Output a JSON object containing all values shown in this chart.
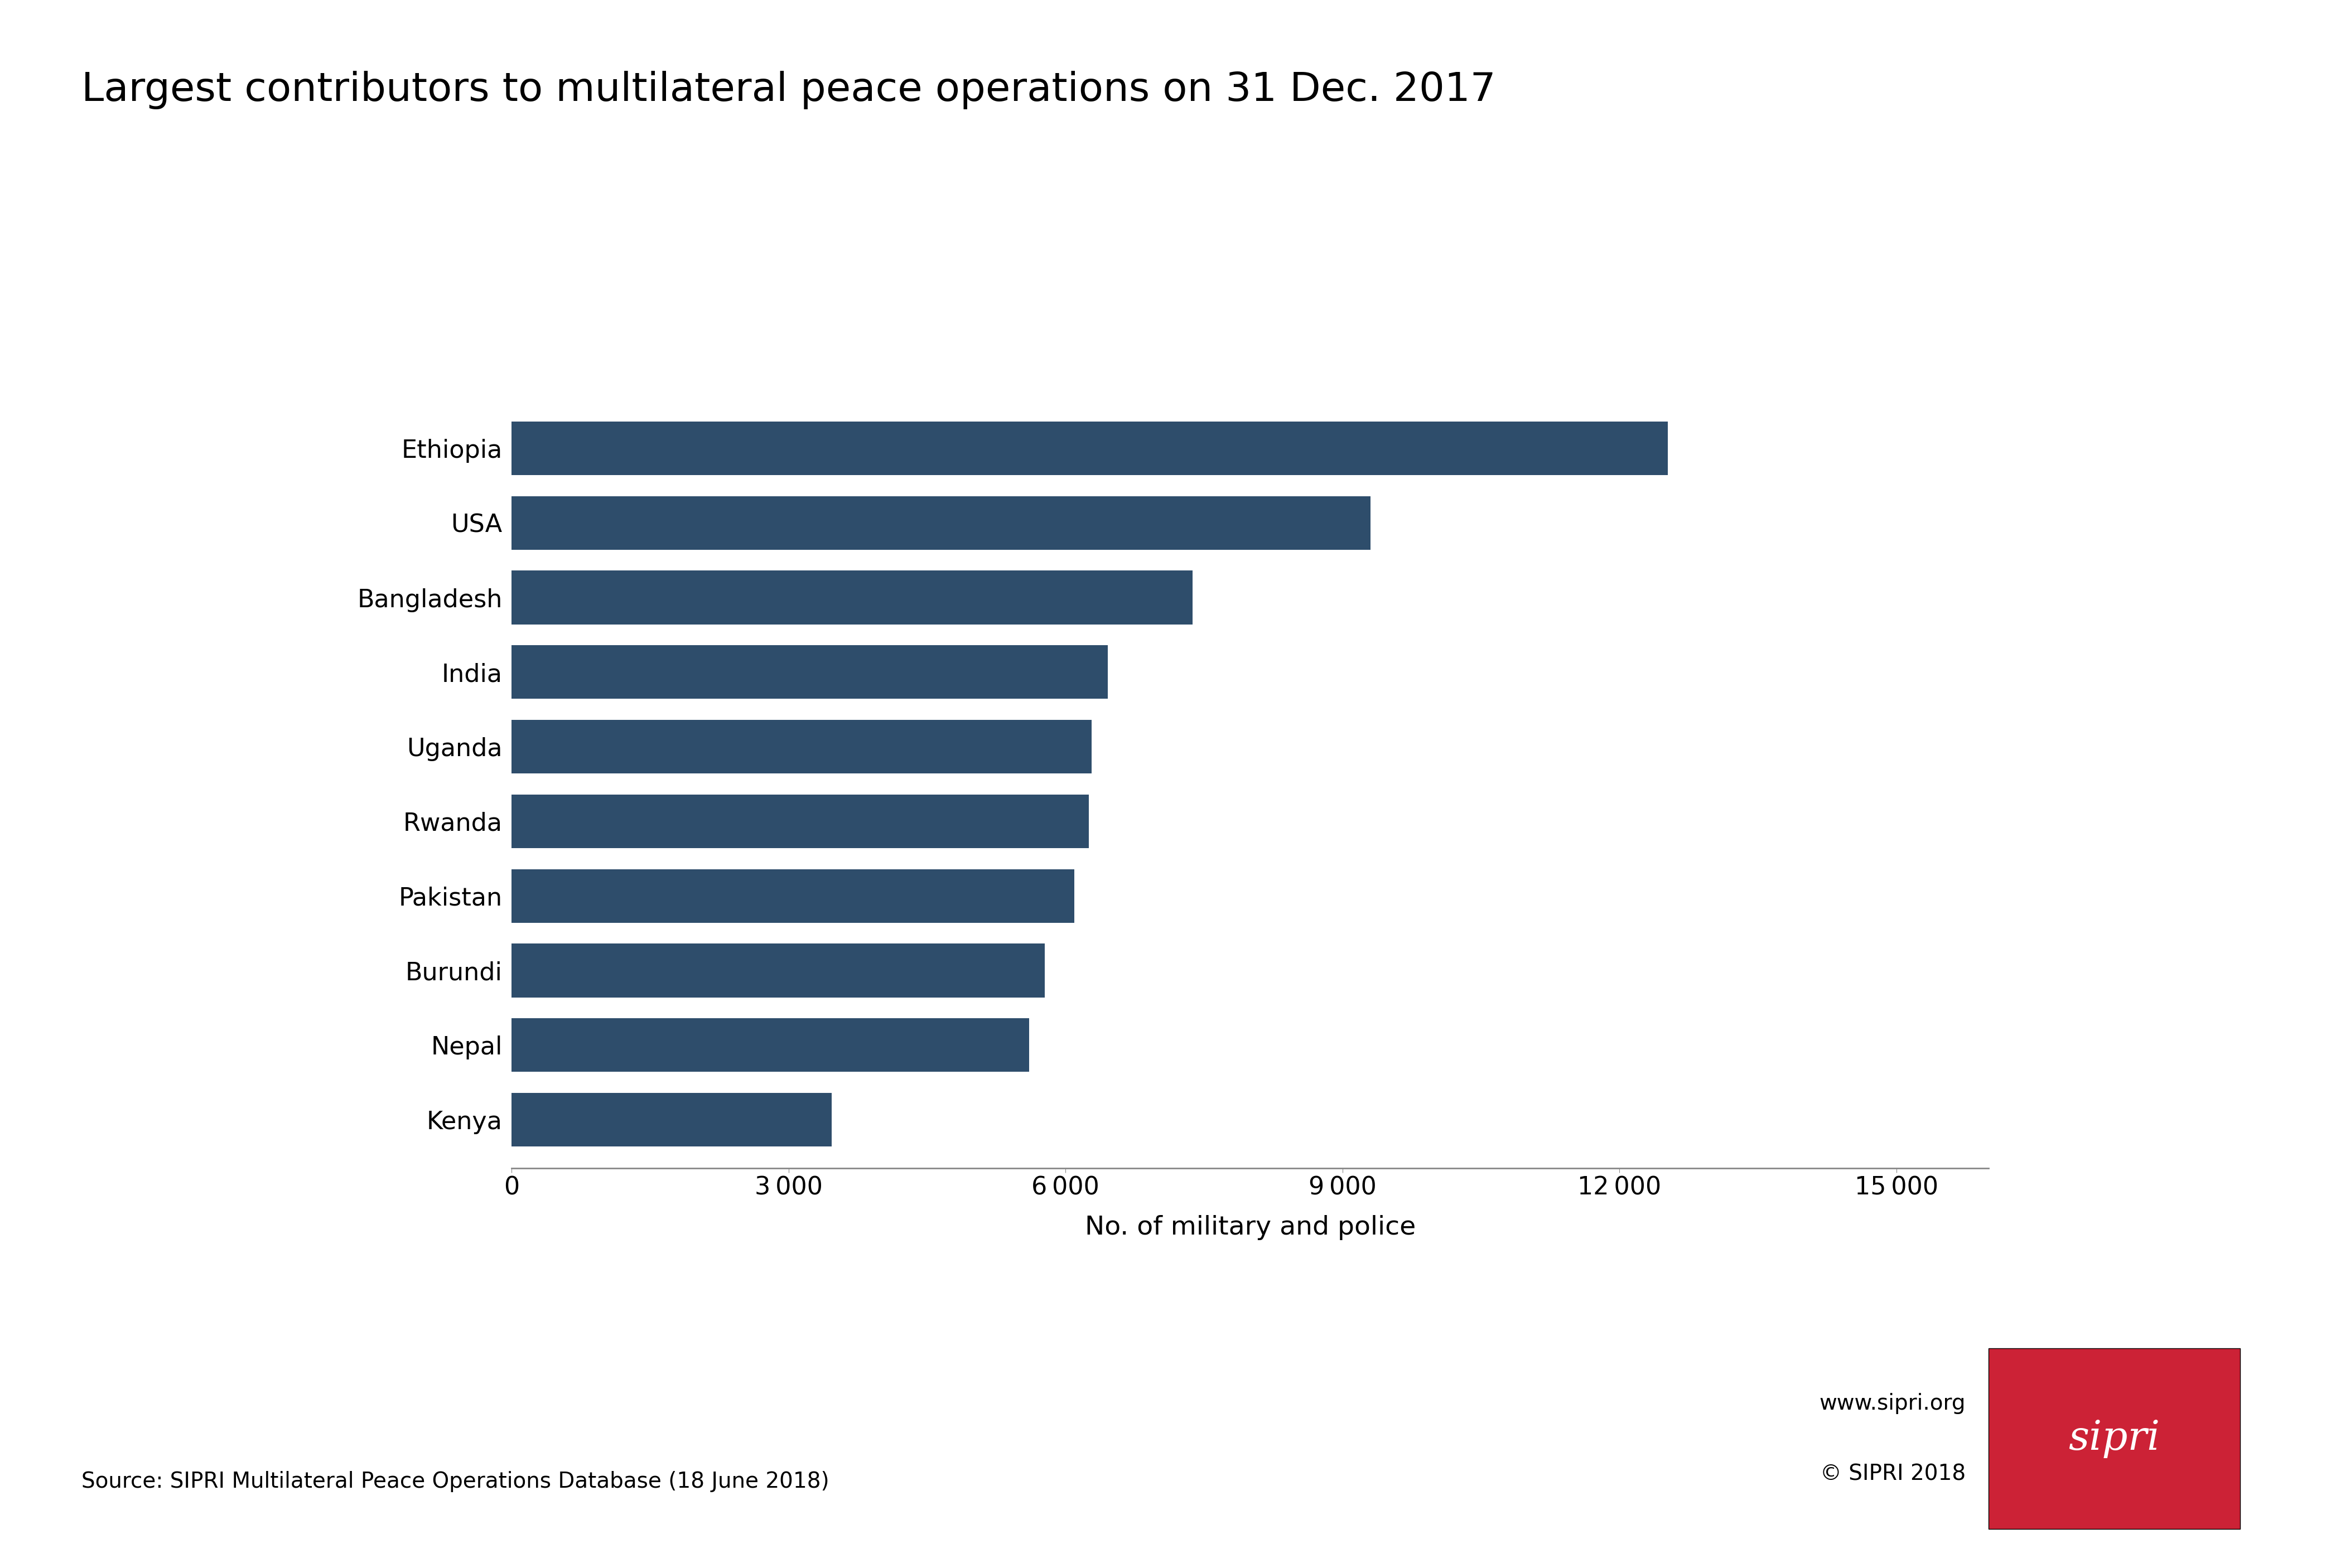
{
  "title": "Largest contributors to multilateral peace operations on 31 Dec. 2017",
  "categories": [
    "Ethiopia",
    "USA",
    "Bangladesh",
    "India",
    "Uganda",
    "Rwanda",
    "Pakistan",
    "Burundi",
    "Nepal",
    "Kenya"
  ],
  "values": [
    12523,
    9301,
    7376,
    6455,
    6280,
    6250,
    6097,
    5775,
    5603,
    3468
  ],
  "bar_color": "#2e4d6b",
  "xlabel": "No. of military and police",
  "xlim": [
    0,
    16000
  ],
  "xticks": [
    0,
    3000,
    6000,
    9000,
    12000,
    15000
  ],
  "xtick_labels": [
    "0",
    "3 000",
    "6 000",
    "9 000",
    "12 000",
    "15 000"
  ],
  "title_fontsize": 52,
  "axis_label_fontsize": 34,
  "tick_fontsize": 32,
  "source_text": "Source: SIPRI Multilateral Peace Operations Database (18 June 2018)",
  "source_fontsize": 28,
  "website_text": "www.sipri.org",
  "copyright_text": "© SIPRI 2018",
  "footer_fontsize": 28,
  "sipri_box_color": "#cc2236",
  "background_color": "#ffffff"
}
